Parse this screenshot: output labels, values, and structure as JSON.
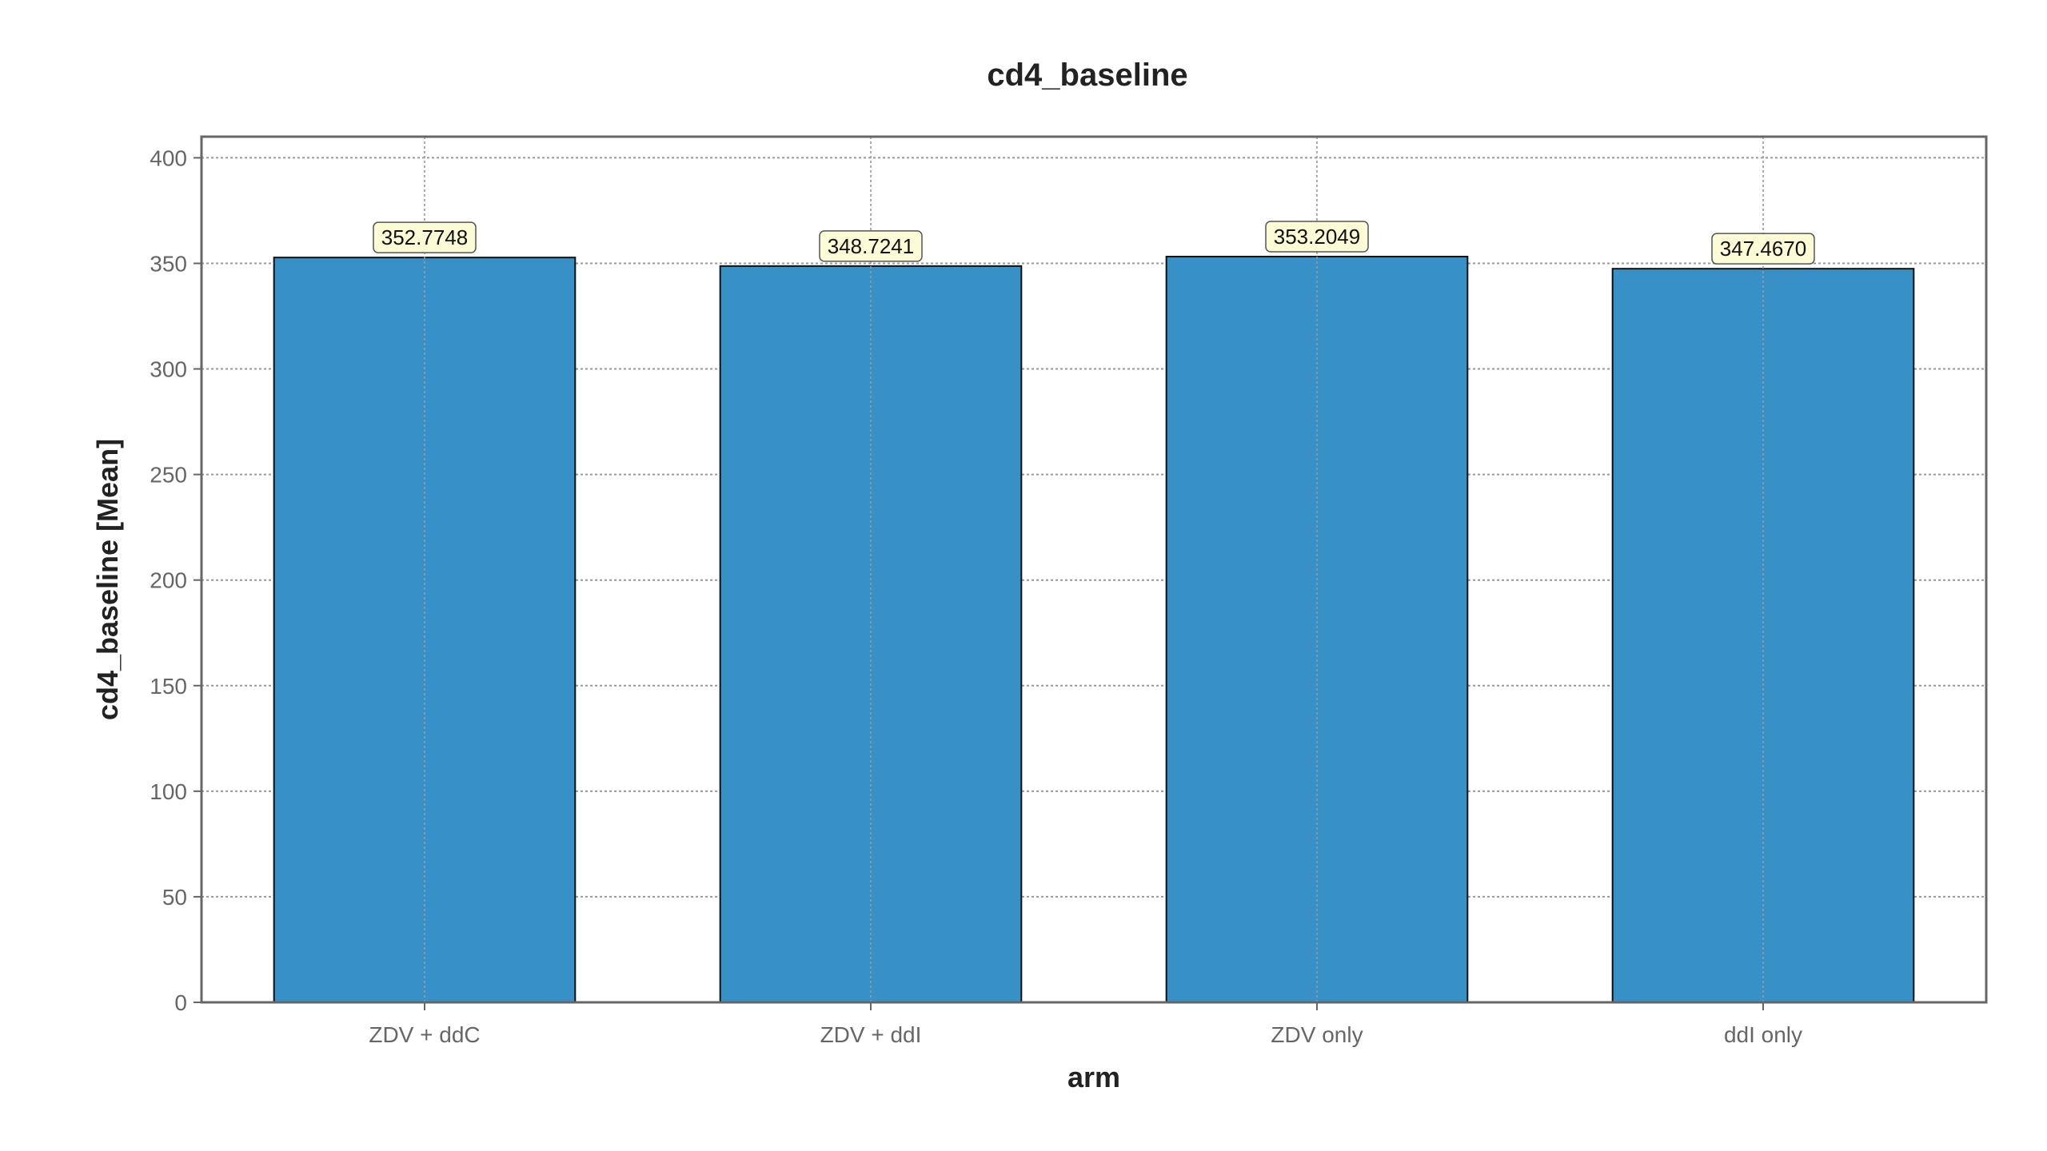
{
  "chart_data": {
    "type": "bar",
    "title": "cd4_baseline",
    "xlabel": "arm",
    "ylabel": "cd4_baseline [Mean]",
    "categories": [
      "ZDV + ddC",
      "ZDV + ddI",
      "ZDV only",
      "ddI only"
    ],
    "values": [
      352.7748,
      348.7241,
      353.2049,
      347.467
    ],
    "value_labels": [
      "352.7748",
      "348.7241",
      "353.2049",
      "347.4670"
    ],
    "ylim": [
      0,
      410
    ],
    "yticks": [
      0,
      50,
      100,
      150,
      200,
      250,
      300,
      350,
      400
    ],
    "grid": true,
    "colors": {
      "bar": "#3891c6",
      "bar_edge": "#111111",
      "label_box": "#fbfbd6",
      "grid": "#999999",
      "frame": "#666666"
    }
  }
}
